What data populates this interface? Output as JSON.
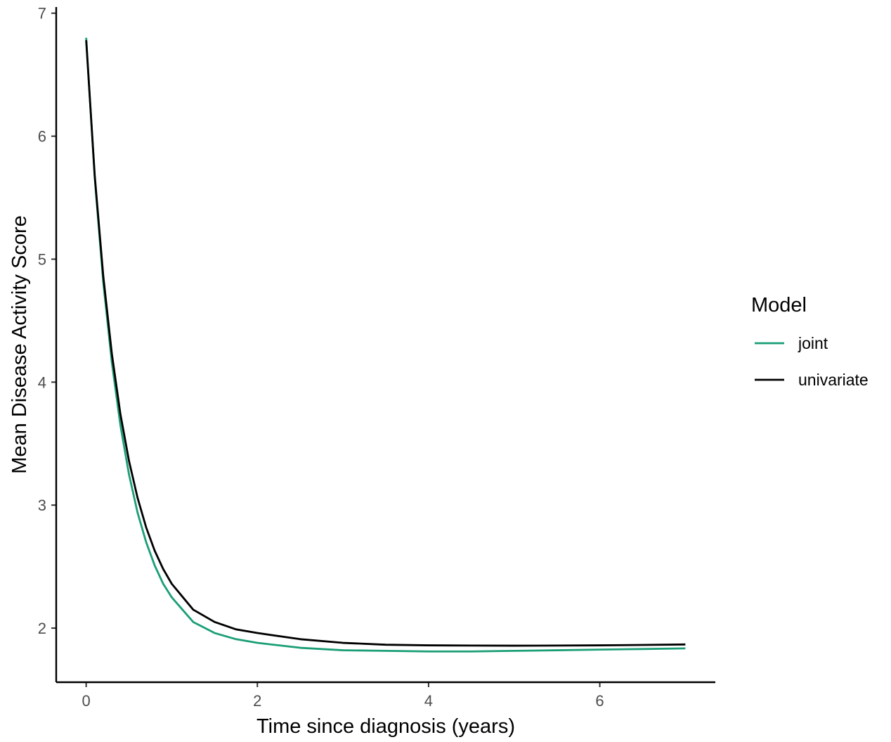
{
  "chart_data": {
    "type": "line",
    "title": "",
    "xlabel": "Time since diagnosis (years)",
    "ylabel": "Mean Disease Activity Score",
    "xlim": [
      -0.35,
      7.35
    ],
    "ylim": [
      1.56,
      7.05
    ],
    "x_ticks": [
      0,
      2,
      4,
      6
    ],
    "y_ticks": [
      2,
      3,
      4,
      5,
      6,
      7
    ],
    "grid": false,
    "legend": {
      "title": "Model",
      "position": "right"
    },
    "series": [
      {
        "name": "joint",
        "color": "#1b9e77",
        "x": [
          0,
          0.1,
          0.2,
          0.3,
          0.4,
          0.5,
          0.6,
          0.7,
          0.8,
          0.9,
          1.0,
          1.25,
          1.5,
          1.75,
          2.0,
          2.5,
          3.0,
          3.5,
          4.0,
          4.5,
          5.0,
          5.5,
          6.0,
          6.5,
          7.0
        ],
        "y": [
          6.8,
          5.66,
          4.81,
          4.16,
          3.65,
          3.25,
          2.94,
          2.7,
          2.51,
          2.36,
          2.25,
          2.05,
          1.96,
          1.91,
          1.88,
          1.84,
          1.82,
          1.815,
          1.81,
          1.81,
          1.815,
          1.82,
          1.825,
          1.83,
          1.835
        ]
      },
      {
        "name": "univariate",
        "color": "#000000",
        "x": [
          0,
          0.1,
          0.2,
          0.3,
          0.4,
          0.5,
          0.6,
          0.7,
          0.8,
          0.9,
          1.0,
          1.25,
          1.5,
          1.75,
          2.0,
          2.5,
          3.0,
          3.5,
          4.0,
          4.5,
          5.0,
          5.5,
          6.0,
          6.5,
          7.0
        ],
        "y": [
          6.78,
          5.68,
          4.86,
          4.23,
          3.74,
          3.36,
          3.06,
          2.82,
          2.63,
          2.48,
          2.36,
          2.15,
          2.05,
          1.99,
          1.96,
          1.91,
          1.88,
          1.865,
          1.86,
          1.858,
          1.857,
          1.858,
          1.86,
          1.863,
          1.867
        ]
      }
    ]
  }
}
